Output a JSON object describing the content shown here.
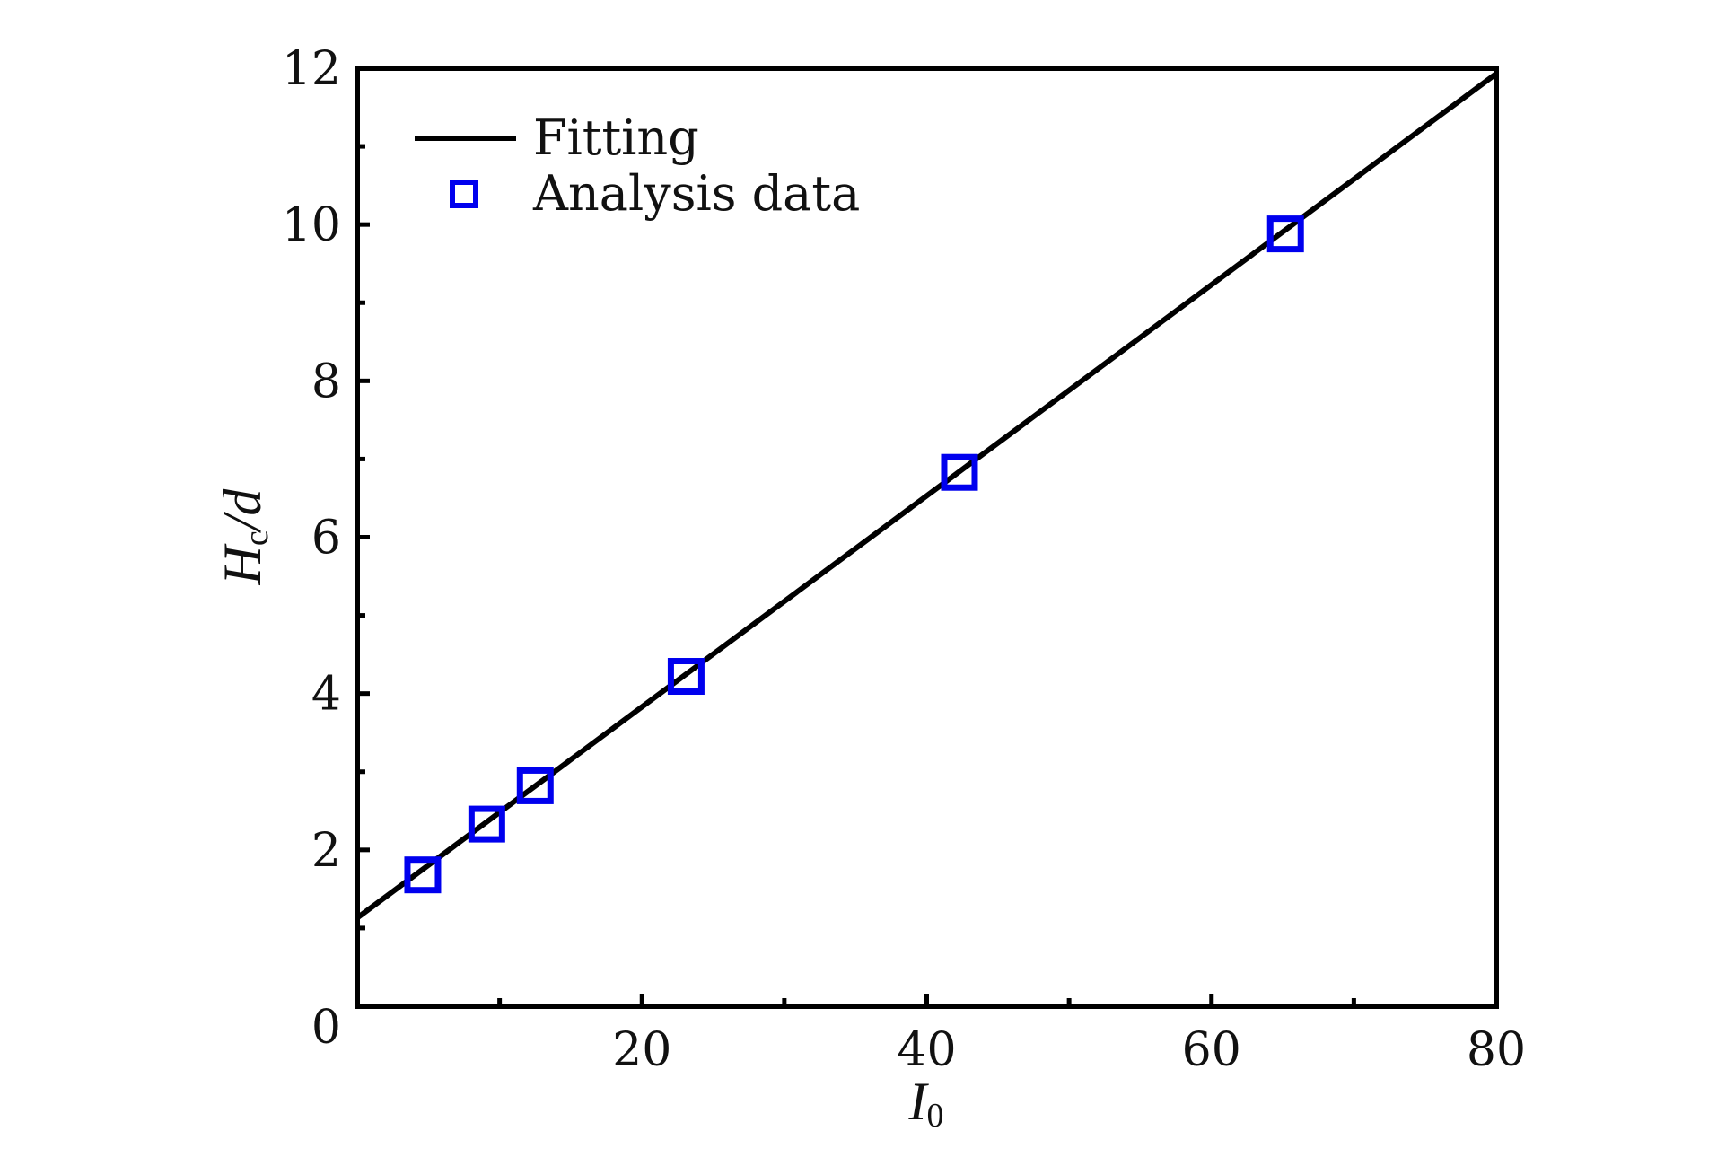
{
  "chart_data": {
    "type": "scatter",
    "title": "",
    "xlabel": {
      "main": "I",
      "sub": "0"
    },
    "ylabel": {
      "main": "H",
      "sub": "c",
      "rest": "/d"
    },
    "xlim": [
      0,
      80
    ],
    "ylim": [
      0,
      12
    ],
    "x_ticks": [
      0,
      20,
      40,
      60,
      80
    ],
    "x_minor_ticks": [
      10,
      30,
      50,
      70
    ],
    "y_ticks": [
      0,
      2,
      4,
      6,
      8,
      10,
      12
    ],
    "y_minor_ticks": [
      1,
      3,
      5,
      7,
      9,
      11
    ],
    "grid": false,
    "legend_position": "top-left",
    "series": [
      {
        "name": "Fitting",
        "kind": "line",
        "color": "#000000",
        "x": [
          0,
          80
        ],
        "y": [
          1.13,
          11.93
        ]
      },
      {
        "name": "Analysis data",
        "kind": "scatter",
        "marker": "open-square",
        "color": "#0000ee",
        "x": [
          4.6,
          9.1,
          12.5,
          23.1,
          42.3,
          65.2
        ],
        "y": [
          1.68,
          2.33,
          2.82,
          4.22,
          6.83,
          9.88
        ]
      }
    ]
  }
}
